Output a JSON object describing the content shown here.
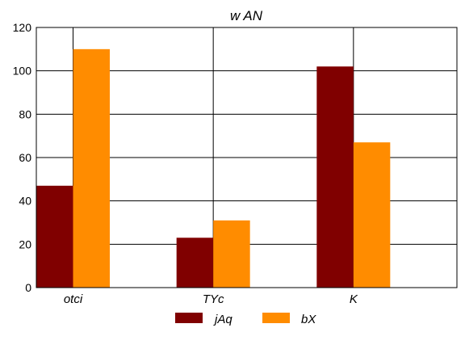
{
  "chart_data": {
    "type": "bar",
    "title": "w AN",
    "xlabel": "",
    "ylabel": "",
    "categories": [
      "otci",
      "TYc",
      "K"
    ],
    "series": [
      {
        "name": "jAq",
        "values": [
          47,
          23,
          102
        ],
        "color": "#800000"
      },
      {
        "name": "bX",
        "values": [
          110,
          31,
          67
        ],
        "color": "#ff8c00"
      }
    ],
    "ylim": [
      0,
      120
    ],
    "yticks": [
      "0",
      "20",
      "40",
      "60",
      "80",
      "100",
      "120"
    ],
    "grid": true,
    "legend_position": "bottom"
  }
}
